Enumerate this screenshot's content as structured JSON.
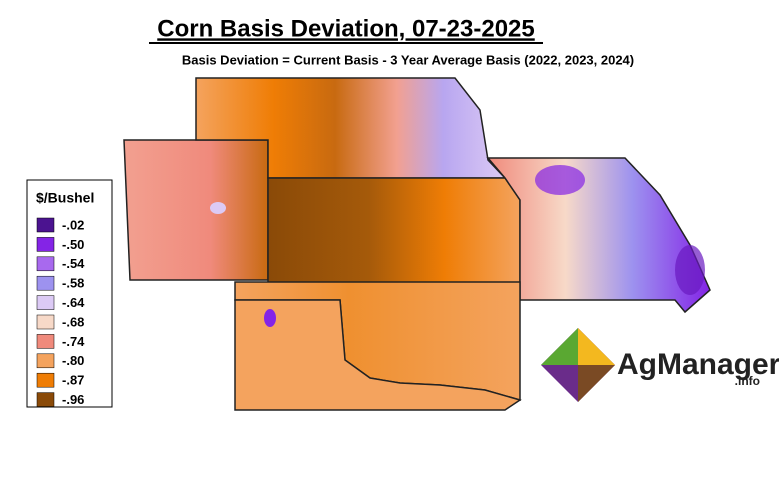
{
  "header": {
    "title": "Corn Basis Deviation, 07-23-2025",
    "subtitle": "Basis Deviation = Current Basis - 3 Year Average Basis (2022, 2023, 2024)"
  },
  "legend": {
    "title": "$/Bushel",
    "items": [
      {
        "label": "-.02",
        "color": "#4b1390"
      },
      {
        "label": "-.50",
        "color": "#8424e6"
      },
      {
        "label": "-.54",
        "color": "#a869ee"
      },
      {
        "label": "-.58",
        "color": "#9d92ef"
      },
      {
        "label": "-.64",
        "color": "#dccaf5"
      },
      {
        "label": "-.68",
        "color": "#f7d9c8"
      },
      {
        "label": "-.74",
        "color": "#f08a7c"
      },
      {
        "label": "-.80",
        "color": "#f4a35e"
      },
      {
        "label": "-.87",
        "color": "#ef7d05"
      },
      {
        "label": "-.96",
        "color": "#8a4a08"
      }
    ]
  },
  "logo": {
    "name": "AgManager",
    "suffix": ".info"
  }
}
